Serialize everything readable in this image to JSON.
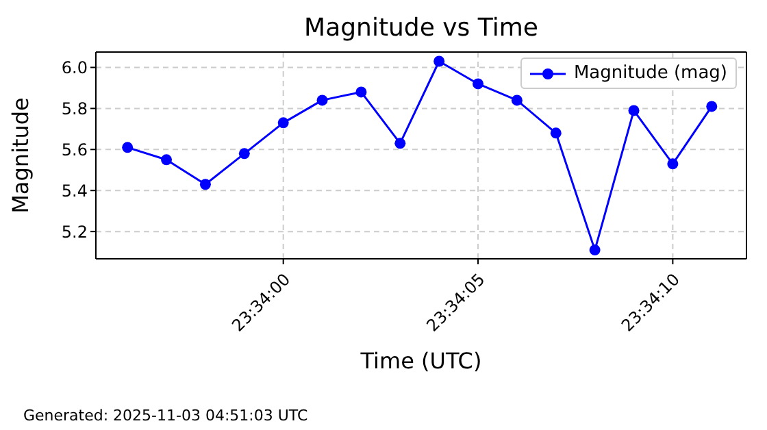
{
  "chart_data": {
    "type": "line",
    "title": "Magnitude vs Time",
    "xlabel": "Time (UTC)",
    "ylabel": "Magnitude",
    "x": [
      23.5655556,
      23.5658333,
      23.5661111,
      23.5663889,
      23.5666667,
      23.5669444,
      23.5672222,
      23.5675,
      23.5677778,
      23.5680556,
      23.5683333,
      23.5686111,
      23.5688889,
      23.5691667,
      23.5694444,
      23.5697222
    ],
    "series": [
      {
        "name": "Magnitude (mag)",
        "color": "#0000ff",
        "values": [
          5.61,
          5.55,
          5.43,
          5.58,
          5.73,
          5.84,
          5.88,
          5.63,
          6.03,
          5.92,
          5.84,
          5.68,
          5.11,
          5.79,
          5.53,
          5.81
        ]
      }
    ],
    "xlim": [
      23.56533,
      23.56997
    ],
    "xticks": [
      {
        "value": 23.5666667,
        "label": "23:34:00"
      },
      {
        "value": 23.5680556,
        "label": "23:34:05"
      },
      {
        "value": 23.5694444,
        "label": "23:34:10"
      }
    ],
    "ylim": [
      5.067,
      6.075
    ],
    "yticks": [
      5.2,
      5.4,
      5.6,
      5.8,
      {
        "value": 6,
        "label": "6.0"
      }
    ],
    "grid": true,
    "legend": "top right",
    "marker": "circle",
    "line_style": "solid",
    "annotations": [
      "Generated: 2025-11-03 04:51:03 UTC"
    ]
  }
}
